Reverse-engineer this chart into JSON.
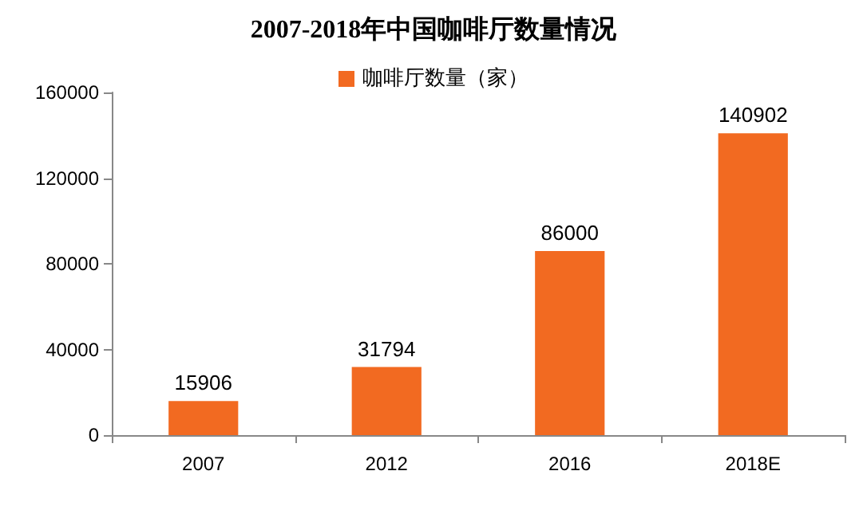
{
  "chart_data": {
    "type": "bar",
    "title": "2007-2018年中国咖啡厅数量情况",
    "categories": [
      "2007",
      "2012",
      "2016",
      "2018E"
    ],
    "series": [
      {
        "name": "咖啡厅数量（家）",
        "color": "#f26a21",
        "values": [
          15906,
          31794,
          86000,
          140902
        ]
      }
    ],
    "ylim": [
      0,
      160000
    ],
    "yticks": [
      0,
      40000,
      80000,
      120000,
      160000
    ],
    "data_labels": true,
    "legend": "top",
    "grid": false
  }
}
